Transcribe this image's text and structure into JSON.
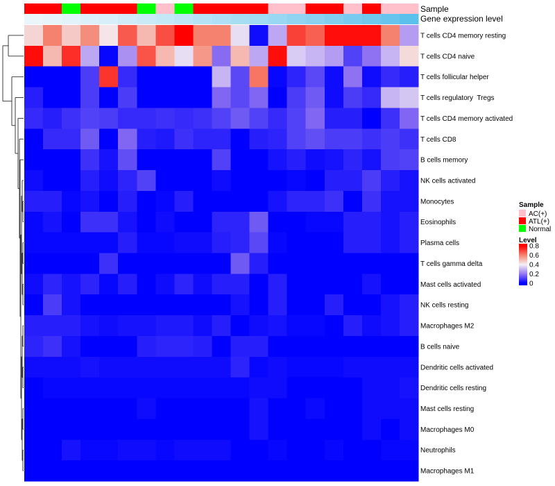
{
  "chart_data": {
    "type": "heatmap",
    "title": "",
    "xlabel": "",
    "ylabel": "",
    "rows": [
      "T cells CD4 memory resting",
      "T cells CD4 naive",
      "T cells follicular helper",
      "T cells regulatory  Tregs",
      "T cells CD4 memory activated",
      "T cells CD8",
      "B cells memory",
      "NK cells activated",
      "Monocytes",
      "Eosinophils",
      "Plasma cells",
      "T cells gamma delta",
      "Mast cells activated",
      "NK cells resting",
      "Macrophages M2",
      "B cells naive",
      "Dendritic cells activated",
      "Dendritic cells resting",
      "Mast cells resting",
      "Macrophages M0",
      "Neutrophils",
      "Macrophages M1"
    ],
    "values": [
      [
        0.45,
        0.6,
        0.47,
        0.58,
        0.42,
        0.66,
        0.5,
        0.68,
        0.8,
        0.6,
        0.6,
        0.37,
        0.02,
        0.28,
        0.7,
        0.65,
        0.78,
        0.78,
        0.78,
        0.6,
        0.26
      ],
      [
        0.78,
        0.5,
        0.73,
        0.28,
        0.01,
        0.24,
        0.67,
        0.5,
        0.37,
        0.56,
        0.18,
        0.5,
        0.28,
        0.78,
        0.34,
        0.3,
        0.26,
        0.11,
        0.19,
        0.3,
        0.44
      ],
      [
        0,
        0,
        0,
        0.1,
        0.72,
        0.07,
        0,
        0,
        0,
        0,
        0.3,
        0.12,
        0.62,
        0.01,
        0.06,
        0.12,
        0.02,
        0.19,
        0.02,
        0.07,
        0.05
      ],
      [
        0.05,
        0,
        0,
        0.1,
        0,
        0.1,
        0,
        0,
        0,
        0,
        0.17,
        0.12,
        0.17,
        0,
        0.1,
        0.15,
        0.02,
        0.1,
        0.07,
        0.3,
        0.33
      ],
      [
        0.07,
        0.05,
        0.08,
        0.11,
        0.1,
        0.07,
        0.07,
        0.08,
        0.07,
        0.08,
        0.11,
        0.15,
        0.11,
        0.07,
        0.11,
        0.17,
        0.05,
        0.05,
        0,
        0.08,
        0.17
      ],
      [
        0,
        0.07,
        0.07,
        0.15,
        0,
        0.17,
        0.05,
        0.04,
        0.08,
        0.06,
        0.06,
        0,
        0.05,
        0.06,
        0.11,
        0.13,
        0.1,
        0.1,
        0.08,
        0.1,
        0.08
      ],
      [
        0,
        0,
        0,
        0.08,
        0.03,
        0.13,
        0,
        0,
        0,
        0,
        0.11,
        0,
        0,
        0.03,
        0.05,
        0.02,
        0.03,
        0.06,
        0.03,
        0.1,
        0.11
      ],
      [
        0.02,
        0,
        0,
        0.05,
        0.02,
        0.06,
        0.11,
        0,
        0,
        0,
        0.02,
        0,
        0,
        0,
        0.01,
        0,
        0.05,
        0.05,
        0.1,
        0.05,
        0.03
      ],
      [
        0.05,
        0.05,
        0.01,
        0.03,
        0,
        0.05,
        0,
        0.01,
        0.05,
        0,
        0,
        0,
        0,
        0.03,
        0.06,
        0.06,
        0.08,
        0,
        0.08,
        0.03,
        0.03
      ],
      [
        0.01,
        0.03,
        0,
        0.08,
        0.08,
        0.03,
        0,
        0.02,
        0,
        0,
        0.06,
        0.06,
        0.15,
        0,
        0,
        0.01,
        0.01,
        0.05,
        0.05,
        0.03,
        0.05
      ],
      [
        0.01,
        0.01,
        0.01,
        0.01,
        0.01,
        0.05,
        0.01,
        0.01,
        0.02,
        0.02,
        0.05,
        0.06,
        0.12,
        0.01,
        0,
        0,
        0,
        0.05,
        0.05,
        0.03,
        0.05
      ],
      [
        0,
        0,
        0,
        0,
        0.08,
        0,
        0,
        0,
        0,
        0,
        0,
        0.15,
        0.05,
        0,
        0,
        0,
        0,
        0,
        0,
        0,
        0
      ],
      [
        0.02,
        0.06,
        0.03,
        0.06,
        0.01,
        0.05,
        0,
        0.02,
        0.06,
        0.02,
        0.05,
        0.05,
        0,
        0.05,
        0,
        0,
        0,
        0,
        0.03,
        0,
        0
      ],
      [
        0,
        0.1,
        0.03,
        0,
        0,
        0,
        0,
        0,
        0,
        0,
        0,
        0.03,
        0,
        0.05,
        0,
        0,
        0.05,
        0,
        0,
        0.03,
        0.05
      ],
      [
        0.05,
        0.05,
        0.05,
        0.03,
        0.02,
        0.03,
        0.03,
        0.04,
        0.04,
        0.02,
        0.05,
        0,
        0.02,
        0.03,
        0.01,
        0.01,
        0,
        0.05,
        0.02,
        0.03,
        0.05
      ],
      [
        0.06,
        0.08,
        0.03,
        0,
        0,
        0,
        0.05,
        0.06,
        0.06,
        0.05,
        0,
        0.05,
        0.05,
        0,
        0,
        0,
        0,
        0,
        0,
        0,
        0
      ],
      [
        0.02,
        0.02,
        0.02,
        0.03,
        0.02,
        0.02,
        0.02,
        0.02,
        0.02,
        0.02,
        0.02,
        0.06,
        0.01,
        0.02,
        0.01,
        0.01,
        0.01,
        0.02,
        0.02,
        0.02,
        0.02
      ],
      [
        0,
        0.01,
        0.01,
        0.01,
        0.01,
        0.01,
        0.01,
        0.01,
        0.01,
        0.01,
        0.01,
        0.01,
        0.02,
        0.02,
        0,
        0,
        0,
        0,
        0.02,
        0.02,
        0.03
      ],
      [
        0,
        0,
        0,
        0,
        0,
        0,
        0.02,
        0,
        0,
        0,
        0,
        0,
        0.03,
        0,
        0,
        0.015,
        0,
        0,
        0.02,
        0.02,
        0.02
      ],
      [
        0,
        0,
        0,
        0,
        0,
        0,
        0,
        0,
        0,
        0,
        0,
        0,
        0.03,
        0,
        0,
        0,
        0,
        0,
        0.02,
        0,
        0.02
      ],
      [
        0,
        0,
        0.03,
        0.01,
        0.01,
        0.02,
        0.02,
        0.01,
        0.02,
        0.02,
        0.02,
        0,
        0,
        0.01,
        0,
        0,
        0.01,
        0,
        0,
        0.01,
        0.01
      ],
      [
        0,
        0,
        0,
        0,
        0,
        0,
        0,
        0,
        0,
        0,
        0,
        0,
        0,
        0,
        0,
        0,
        0,
        0,
        0,
        0,
        0
      ]
    ],
    "color_scale": {
      "breaks": [
        0,
        0.2,
        0.4,
        0.6,
        0.8
      ],
      "colors": [
        "#0000ff",
        "#9678f0",
        "#f5f0f5",
        "#f5826e",
        "#ff0000"
      ]
    },
    "annotations": {
      "sample": {
        "label": "Sample",
        "values": [
          "ATL(+)",
          "ATL(+)",
          "Normal",
          "ATL(+)",
          "ATL(+)",
          "ATL(+)",
          "Normal",
          "AC(+)",
          "Normal",
          "ATL(+)",
          "ATL(+)",
          "ATL(+)",
          "ATL(+)",
          "AC(+)",
          "AC(+)",
          "ATL(+)",
          "ATL(+)",
          "AC(+)",
          "ATL(+)",
          "AC(+)",
          "AC(+)"
        ]
      },
      "gene_expression_level": {
        "label": "Gene expression level",
        "values": [
          0.02,
          0.05,
          0.08,
          0.12,
          0.15,
          0.2,
          0.24,
          0.28,
          0.33,
          0.38,
          0.43,
          0.48,
          0.53,
          0.58,
          0.63,
          0.68,
          0.74,
          0.8,
          0.86,
          0.92,
          1.0
        ],
        "low_color": "#eef7fb",
        "high_color": "#5bc0eb"
      }
    },
    "legend": {
      "sample_title": "Sample",
      "sample_items": [
        {
          "label": "AC(+)",
          "color": "#ffc0cb"
        },
        {
          "label": "ATL(+)",
          "color": "#ff0000"
        },
        {
          "label": "Normal",
          "color": "#00ff00"
        }
      ],
      "level_title": "Level",
      "level_ticks": [
        0.8,
        0.6,
        0.4,
        0.2,
        0
      ]
    }
  }
}
